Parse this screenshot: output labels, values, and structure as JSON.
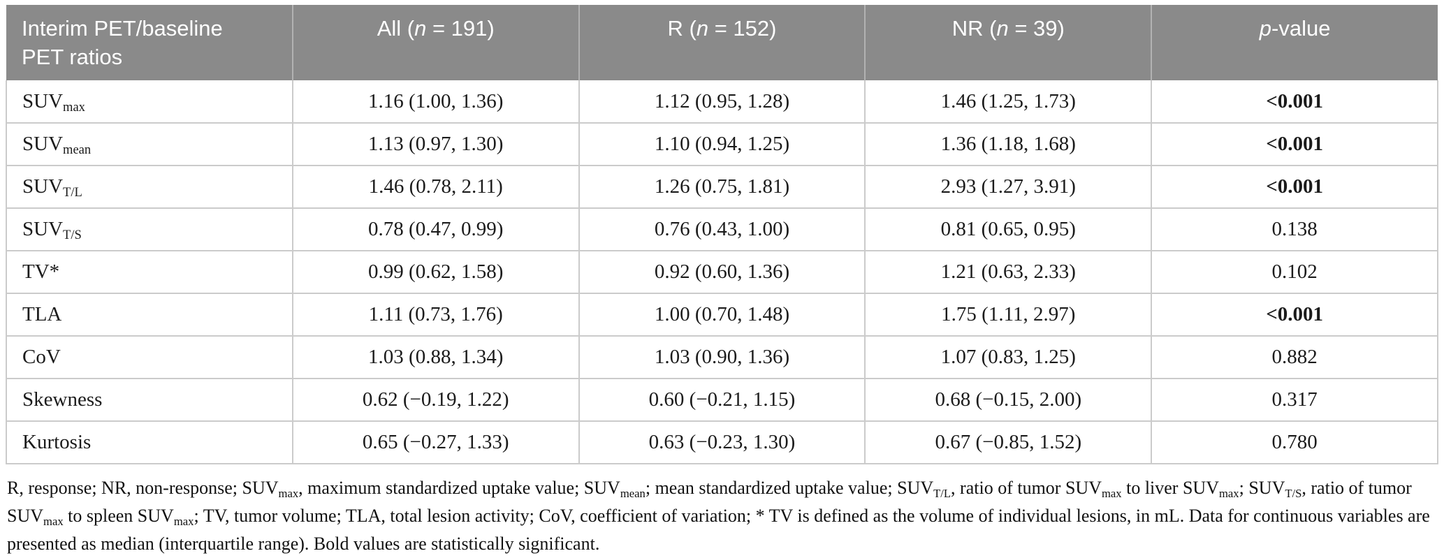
{
  "table": {
    "header": {
      "ratios_label_line1": "Interim PET/baseline",
      "ratios_label_line2": "PET ratios",
      "cols": [
        {
          "pre": "All (",
          "it": "n",
          "post": " = 191)"
        },
        {
          "pre": "R (",
          "it": "n",
          "post": " = 152)"
        },
        {
          "pre": "NR (",
          "it": "n",
          "post": " = 39)"
        },
        {
          "pre": "",
          "it": "p",
          "post": "-value"
        }
      ]
    },
    "rows": [
      {
        "label": {
          "base": "SUV",
          "sub": "max"
        },
        "all": "1.16 (1.00, 1.36)",
        "r": "1.12 (0.95, 1.28)",
        "nr": "1.46 (1.25, 1.73)",
        "p": "<0.001",
        "significant": true
      },
      {
        "label": {
          "base": "SUV",
          "sub": "mean"
        },
        "all": "1.13 (0.97, 1.30)",
        "r": "1.10 (0.94, 1.25)",
        "nr": "1.36 (1.18, 1.68)",
        "p": "<0.001",
        "significant": true
      },
      {
        "label": {
          "base": "SUV",
          "sub": "T/L"
        },
        "all": "1.46 (0.78, 2.11)",
        "r": "1.26 (0.75, 1.81)",
        "nr": "2.93 (1.27, 3.91)",
        "p": "<0.001",
        "significant": true
      },
      {
        "label": {
          "base": "SUV",
          "sub": "T/S"
        },
        "all": "0.78 (0.47, 0.99)",
        "r": "0.76 (0.43, 1.00)",
        "nr": "0.81 (0.65, 0.95)",
        "p": "0.138",
        "significant": false
      },
      {
        "label": {
          "base": "TV*",
          "sub": ""
        },
        "all": "0.99 (0.62, 1.58)",
        "r": "0.92 (0.60, 1.36)",
        "nr": "1.21 (0.63, 2.33)",
        "p": "0.102",
        "significant": false
      },
      {
        "label": {
          "base": "TLA",
          "sub": ""
        },
        "all": "1.11 (0.73, 1.76)",
        "r": "1.00 (0.70, 1.48)",
        "nr": "1.75 (1.11, 2.97)",
        "p": "<0.001",
        "significant": true
      },
      {
        "label": {
          "base": "CoV",
          "sub": ""
        },
        "all": "1.03 (0.88, 1.34)",
        "r": "1.03 (0.90, 1.36)",
        "nr": "1.07 (0.83, 1.25)",
        "p": "0.882",
        "significant": false
      },
      {
        "label": {
          "base": "Skewness",
          "sub": ""
        },
        "all": "0.62 (−0.19, 1.22)",
        "r": "0.60 (−0.21, 1.15)",
        "nr": "0.68 (−0.15, 2.00)",
        "p": "0.317",
        "significant": false
      },
      {
        "label": {
          "base": "Kurtosis",
          "sub": ""
        },
        "all": "0.65 (−0.27, 1.33)",
        "r": "0.63 (−0.23, 1.30)",
        "nr": "0.67 (−0.85, 1.52)",
        "p": "0.780",
        "significant": false
      }
    ]
  },
  "footnote": {
    "segments": [
      {
        "t": "R, response; NR, non-response; SUV"
      },
      {
        "t": "max",
        "sub": true
      },
      {
        "t": ", maximum standardized uptake value; SUV"
      },
      {
        "t": "mean",
        "sub": true
      },
      {
        "t": "; mean standardized uptake value; SUV"
      },
      {
        "t": "T/L",
        "sub": true
      },
      {
        "t": ", ratio of tumor SUV"
      },
      {
        "t": "max",
        "sub": true
      },
      {
        "t": " to liver SUV"
      },
      {
        "t": "max",
        "sub": true
      },
      {
        "t": "; SUV"
      },
      {
        "t": "T/S",
        "sub": true
      },
      {
        "t": ", ratio of tumor SUV"
      },
      {
        "t": "max",
        "sub": true
      },
      {
        "t": " to spleen SUV"
      },
      {
        "t": "max",
        "sub": true
      },
      {
        "t": "; TV, tumor volume; TLA, total lesion activity; CoV, coefficient of variation; * TV is defined as the volume of individual lesions, in mL. Data for continuous variables are presented as median (interquartile range). Bold values are statistically significant."
      }
    ]
  },
  "colors": {
    "header_bg": "#8a8a8a",
    "header_text": "#ffffff",
    "grid_line": "#cbcbcb",
    "body_text": "#1b1b1b"
  }
}
